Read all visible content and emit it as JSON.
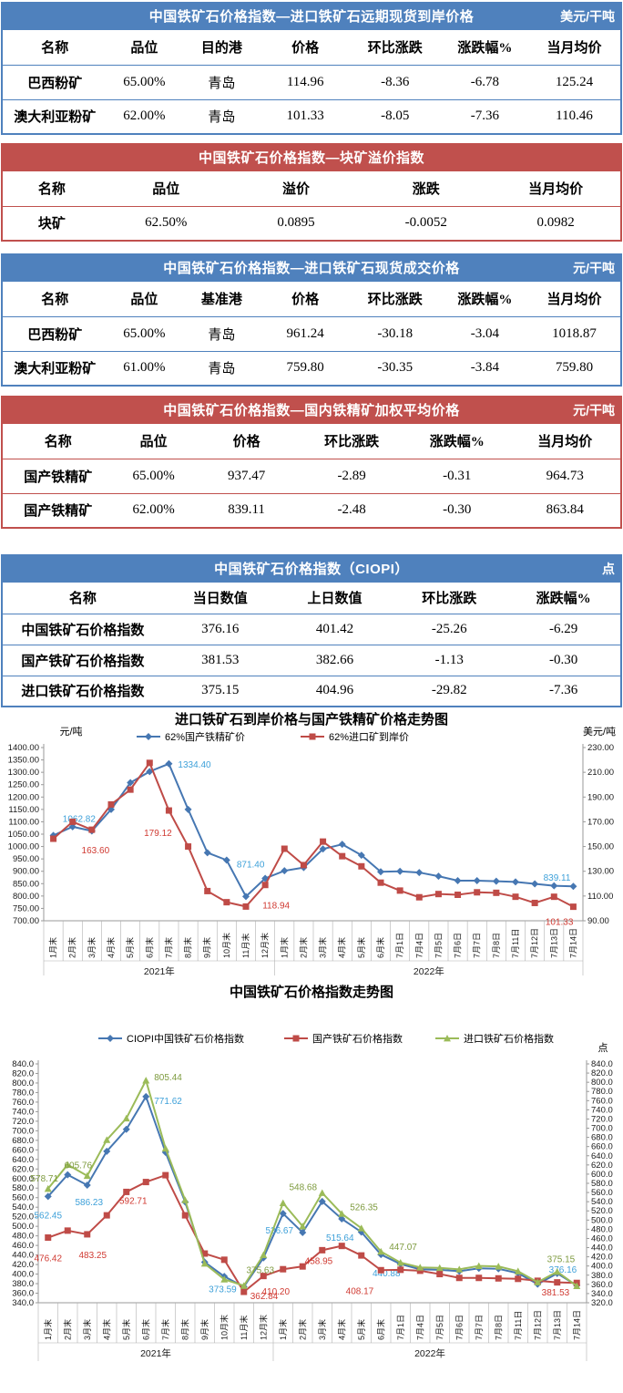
{
  "tables": [
    {
      "theme": "blue",
      "title": "中国铁矿石价格指数—进口铁矿石远期现货到岸价格",
      "unit": "美元/干吨",
      "columns": [
        "名称",
        "品位",
        "目的港",
        "价格",
        "环比涨跌",
        "涨跌幅%",
        "当月均价"
      ],
      "rows": [
        [
          "巴西粉矿",
          "65.00%",
          "青岛",
          "114.96",
          "-8.36",
          "-6.78",
          "125.24"
        ],
        [
          "澳大利亚粉矿",
          "62.00%",
          "青岛",
          "101.33",
          "-8.05",
          "-7.36",
          "110.46"
        ]
      ]
    },
    {
      "theme": "red",
      "title": "中国铁矿石价格指数—块矿溢价指数",
      "unit": "",
      "columns": [
        "名称",
        "品位",
        "溢价",
        "涨跌",
        "当月均价"
      ],
      "rows": [
        [
          "块矿",
          "62.50%",
          "0.0895",
          "-0.0052",
          "0.0982"
        ]
      ]
    },
    {
      "theme": "blue",
      "title": "中国铁矿石价格指数—进口铁矿石现货成交价格",
      "unit": "元/干吨",
      "columns": [
        "名称",
        "品位",
        "基准港",
        "价格",
        "环比涨跌",
        "涨跌幅%",
        "当月均价"
      ],
      "rows": [
        [
          "巴西粉矿",
          "65.00%",
          "青岛",
          "961.24",
          "-30.18",
          "-3.04",
          "1018.87"
        ],
        [
          "澳大利亚粉矿",
          "61.00%",
          "青岛",
          "759.80",
          "-30.35",
          "-3.84",
          "759.80"
        ]
      ]
    },
    {
      "theme": "red",
      "title": "中国铁矿石价格指数—国内铁精矿加权平均价格",
      "unit": "元/干吨",
      "columns": [
        "名称",
        "品位",
        "价格",
        "环比涨跌",
        "涨跌幅%",
        "当月均价"
      ],
      "rows": [
        [
          "国产铁精矿",
          "65.00%",
          "937.47",
          "-2.89",
          "-0.31",
          "964.73"
        ],
        [
          "国产铁精矿",
          "62.00%",
          "839.11",
          "-2.48",
          "-0.30",
          "863.84"
        ]
      ]
    },
    {
      "theme": "blue",
      "title": "中国铁矿石价格指数（CIOPI）",
      "unit": "点",
      "columns": [
        "名称",
        "当日数值",
        "上日数值",
        "环比涨跌",
        "涨跌幅%"
      ],
      "rows": [
        [
          "中国铁矿石价格指数",
          "376.16",
          "401.42",
          "-25.26",
          "-6.29"
        ],
        [
          "国产铁矿石价格指数",
          "381.53",
          "382.66",
          "-1.13",
          "-0.30"
        ],
        [
          "进口铁矿石价格指数",
          "375.15",
          "404.96",
          "-29.82",
          "-7.36"
        ]
      ]
    }
  ],
  "chart_data": [
    {
      "type": "line",
      "title": "进口铁矿石到岸价格与国产铁精矿价格走势图",
      "left_axis": {
        "unit": "元/吨",
        "min": 700,
        "max": 1400,
        "step": 50,
        "decimals": 2
      },
      "right_axis": {
        "unit": "美元/吨",
        "min": 90,
        "max": 230,
        "step": 20,
        "decimals": 2
      },
      "categories": [
        "1月末",
        "2月末",
        "3月末",
        "4月末",
        "5月末",
        "6月末",
        "7月末",
        "8月末",
        "9月末",
        "10月末",
        "11月末",
        "12月末",
        "1月末",
        "2月末",
        "3月末",
        "4月末",
        "5月末",
        "6月末",
        "7月1日",
        "7月4日",
        "7月5日",
        "7月6日",
        "7月7日",
        "7月8日",
        "7月11日",
        "7月12日",
        "7月13日",
        "7月14日"
      ],
      "year_groups": [
        {
          "label": "2021年",
          "count": 12
        },
        {
          "label": "2022年",
          "count": 16
        }
      ],
      "series": [
        {
          "name": "62%国产铁精矿价",
          "axis": "left",
          "color": "#4677b2",
          "label_color": "#3da0d9",
          "marker": "diamond",
          "values": [
            1045,
            1080,
            1062.82,
            1150,
            1258,
            1303,
            1334.4,
            1150,
            975,
            945,
            798,
            871.4,
            902,
            915,
            990,
            1009,
            965,
            898,
            900,
            895,
            880,
            862,
            862,
            860,
            857,
            849,
            841.6,
            839.11
          ],
          "labels": [
            [
              2,
              "1062.82",
              -14,
              -10,
              "middle"
            ],
            [
              6,
              "1334.40",
              10,
              4,
              "start"
            ],
            [
              11,
              "871.40",
              -16,
              -12,
              "middle"
            ],
            [
              27,
              "839.11",
              -3,
              -6,
              "end"
            ]
          ]
        },
        {
          "name": "62%进口矿到岸价",
          "axis": "right",
          "color": "#bf4b47",
          "label_color": "#d03a32",
          "marker": "square",
          "values": [
            156.3,
            170,
            163.6,
            184,
            196,
            217.6,
            179.12,
            150,
            114,
            105,
            101.5,
            118.94,
            148.2,
            135,
            154,
            142.2,
            134,
            120.8,
            114.4,
            109,
            111.6,
            111,
            113,
            112.6,
            109.4,
            104.4,
            109.4,
            101.33
          ],
          "labels": [
            [
              2,
              "163.60",
              4,
              26,
              "middle"
            ],
            [
              6,
              "179.12",
              -12,
              28,
              "middle"
            ],
            [
              11,
              "118.94",
              12,
              26,
              "middle"
            ],
            [
              27,
              "101.33",
              0,
              20,
              "end"
            ]
          ]
        }
      ]
    },
    {
      "type": "line",
      "title": "中国铁矿石价格指数走势图",
      "left_axis": {
        "unit": "",
        "min": 340,
        "max": 840,
        "step": 20,
        "decimals": 1
      },
      "right_axis": {
        "unit": "点",
        "min": 320,
        "max": 840,
        "step": 20,
        "decimals": 1
      },
      "categories": [
        "1月末",
        "2月末",
        "3月末",
        "4月末",
        "5月末",
        "6月末",
        "7月末",
        "8月末",
        "9月末",
        "10月末",
        "11月末",
        "12月末",
        "1月末",
        "2月末",
        "3月末",
        "4月末",
        "5月末",
        "6月末",
        "7月1日",
        "7月4日",
        "7月5日",
        "7月6日",
        "7月7日",
        "7月8日",
        "7月11日",
        "7月12日",
        "7月13日",
        "7月14日"
      ],
      "year_groups": [
        {
          "label": "2021年",
          "count": 12
        },
        {
          "label": "2022年",
          "count": 16
        }
      ],
      "series": [
        {
          "name": "CIOPI中国铁矿石价格指数",
          "axis": "left",
          "color": "#4677b2",
          "label_color": "#3da0d9",
          "marker": "diamond",
          "values": [
            562.45,
            608,
            586.23,
            657,
            703,
            771.62,
            655,
            551,
            425,
            395,
            373.59,
            434,
            526.67,
            487,
            552,
            515.64,
            488,
            440.88,
            421,
            410,
            409,
            406,
            412,
            411,
            402,
            379,
            401.42,
            376.16
          ],
          "labels": [
            [
              0,
              "562.45",
              0,
              24,
              "middle"
            ],
            [
              2,
              "586.23",
              2,
              22,
              "middle"
            ],
            [
              5,
              "771.62",
              9,
              8,
              "start"
            ],
            [
              10,
              "373.59",
              -8,
              6,
              "end"
            ],
            [
              12,
              "526.67",
              -4,
              22,
              "middle"
            ],
            [
              15,
              "515.64",
              -2,
              24,
              "middle"
            ],
            [
              17,
              "440.88",
              6,
              24,
              "middle"
            ],
            [
              27,
              "376.16",
              0,
              -14,
              "end"
            ]
          ]
        },
        {
          "name": "国产铁矿石价格指数",
          "axis": "left",
          "color": "#bf4b47",
          "label_color": "#d03a32",
          "marker": "square",
          "values": [
            476.42,
            491,
            483.25,
            523,
            572,
            592.71,
            607,
            523,
            443,
            430,
            362.84,
            396,
            410.2,
            416,
            450,
            458.95,
            439,
            408.17,
            409,
            407,
            400,
            392,
            392,
            391,
            390,
            386,
            382.66,
            381.53
          ],
          "labels": [
            [
              0,
              "476.42",
              0,
              26,
              "middle"
            ],
            [
              2,
              "483.25",
              6,
              26,
              "middle"
            ],
            [
              5,
              "592.71",
              -14,
              24,
              "middle"
            ],
            [
              10,
              "362.84",
              7,
              8,
              "start"
            ],
            [
              12,
              "410.20",
              -8,
              28,
              "middle"
            ],
            [
              15,
              "458.95",
              -10,
              20,
              "end"
            ],
            [
              17,
              "408.17",
              -8,
              26,
              "end"
            ],
            [
              27,
              "381.53",
              -8,
              14,
              "end"
            ]
          ]
        },
        {
          "name": "进口铁矿石价格指数",
          "axis": "left",
          "color": "#9bbb59",
          "label_color": "#7e9b3f",
          "marker": "triangle",
          "values": [
            578.71,
            629,
            605.76,
            681,
            726,
            805.44,
            663,
            555,
            422,
            389,
            375.63,
            440,
            548.68,
            500,
            570,
            526.35,
            496,
            447.07,
            424,
            414,
            413,
            410,
            417,
            416,
            406,
            383,
            404.96,
            375.15
          ],
          "labels": [
            [
              0,
              "578.71",
              -4,
              -8,
              "middle"
            ],
            [
              2,
              "605.76",
              -10,
              -8,
              "middle"
            ],
            [
              5,
              "805.44",
              9,
              0,
              "start"
            ],
            [
              10,
              "375.63",
              18,
              -14,
              "middle"
            ],
            [
              12,
              "548.68",
              22,
              -14,
              "middle"
            ],
            [
              15,
              "526.35",
              9,
              -4,
              "start"
            ],
            [
              17,
              "447.07",
              9,
              -2,
              "start"
            ],
            [
              27,
              "375.15",
              -2,
              -26,
              "end"
            ]
          ]
        }
      ]
    }
  ]
}
